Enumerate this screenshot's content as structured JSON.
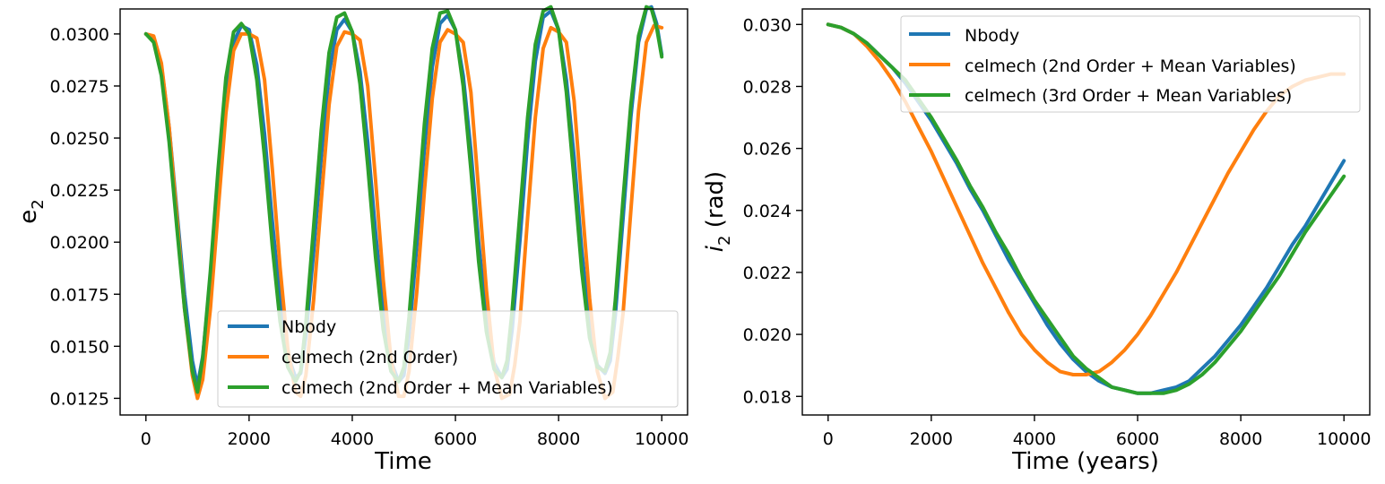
{
  "chart_data": [
    {
      "type": "line",
      "xlabel": "Time",
      "ylabel": "e",
      "ylabel_sub": "2",
      "xlim": [
        -500,
        10500
      ],
      "ylim": [
        0.0117,
        0.0312
      ],
      "xticks": [
        0,
        2000,
        4000,
        6000,
        8000,
        10000
      ],
      "xtick_labels": [
        "0",
        "2000",
        "4000",
        "6000",
        "8000",
        "10000"
      ],
      "yticks": [
        0.0125,
        0.015,
        0.0175,
        0.02,
        0.0225,
        0.025,
        0.0275,
        0.03
      ],
      "ytick_labels": [
        "0.0125",
        "0.0150",
        "0.0175",
        "0.0200",
        "0.0225",
        "0.0250",
        "0.0275",
        "0.0300"
      ],
      "legend_position": "lower-right",
      "grid": false,
      "series": [
        {
          "name": "Nbody",
          "color": "#1f77b4",
          "x": [
            0,
            150,
            300,
            450,
            600,
            750,
            900,
            1000,
            1100,
            1250,
            1400,
            1550,
            1700,
            1850,
            2000,
            2150,
            2300,
            2450,
            2600,
            2750,
            2900,
            3000,
            3100,
            3250,
            3400,
            3550,
            3700,
            3850,
            4000,
            4150,
            4300,
            4450,
            4600,
            4750,
            4900,
            5000,
            5100,
            5250,
            5400,
            5550,
            5700,
            5850,
            6000,
            6150,
            6300,
            6450,
            6600,
            6750,
            6900,
            7000,
            7100,
            7250,
            7400,
            7550,
            7700,
            7850,
            8000,
            8150,
            8300,
            8450,
            8600,
            8750,
            8900,
            9000,
            9100,
            9250,
            9400,
            9550,
            9700,
            9800,
            9900,
            10000
          ],
          "y": [
            0.03,
            0.0298,
            0.0285,
            0.0255,
            0.0215,
            0.0175,
            0.0143,
            0.0131,
            0.0145,
            0.0182,
            0.0228,
            0.0272,
            0.0296,
            0.0304,
            0.0302,
            0.0285,
            0.0252,
            0.021,
            0.0172,
            0.0146,
            0.0135,
            0.0137,
            0.0155,
            0.0195,
            0.0241,
            0.0281,
            0.0302,
            0.0307,
            0.0301,
            0.0282,
            0.0248,
            0.0205,
            0.0167,
            0.0143,
            0.0133,
            0.0136,
            0.0155,
            0.0198,
            0.0245,
            0.0284,
            0.0305,
            0.0309,
            0.0302,
            0.028,
            0.0244,
            0.02,
            0.0164,
            0.0142,
            0.0135,
            0.0139,
            0.0158,
            0.0201,
            0.0249,
            0.0287,
            0.0308,
            0.0311,
            0.0302,
            0.0278,
            0.0241,
            0.0196,
            0.016,
            0.0141,
            0.0137,
            0.0143,
            0.0165,
            0.0212,
            0.026,
            0.0296,
            0.0312,
            0.0313,
            0.0305,
            0.029
          ]
        },
        {
          "name": "celmech (2nd Order)",
          "color": "#ff7f0e",
          "x": [
            0,
            150,
            300,
            450,
            600,
            750,
            900,
            1000,
            1100,
            1250,
            1400,
            1550,
            1700,
            1850,
            2000,
            2150,
            2300,
            2450,
            2600,
            2750,
            2900,
            3000,
            3100,
            3250,
            3400,
            3550,
            3700,
            3850,
            4000,
            4150,
            4300,
            4450,
            4600,
            4750,
            4900,
            5000,
            5100,
            5250,
            5400,
            5550,
            5700,
            5850,
            6000,
            6150,
            6300,
            6450,
            6600,
            6750,
            6900,
            7050,
            7150,
            7250,
            7400,
            7550,
            7700,
            7850,
            8000,
            8150,
            8300,
            8450,
            8600,
            8750,
            8900,
            9050,
            9150,
            9250,
            9400,
            9550,
            9700,
            9850,
            10000
          ],
          "y": [
            0.03,
            0.0299,
            0.0286,
            0.0255,
            0.0212,
            0.0168,
            0.0136,
            0.0125,
            0.0134,
            0.0168,
            0.0215,
            0.0262,
            0.0292,
            0.03,
            0.03,
            0.0298,
            0.0278,
            0.0235,
            0.0188,
            0.0149,
            0.0128,
            0.0126,
            0.0136,
            0.0172,
            0.022,
            0.0266,
            0.0294,
            0.0301,
            0.03,
            0.0297,
            0.0275,
            0.023,
            0.0182,
            0.0144,
            0.0126,
            0.0126,
            0.0138,
            0.0176,
            0.0225,
            0.0269,
            0.0296,
            0.0302,
            0.03,
            0.0296,
            0.0272,
            0.0225,
            0.0177,
            0.014,
            0.0125,
            0.0127,
            0.0141,
            0.0162,
            0.0212,
            0.026,
            0.0293,
            0.0303,
            0.0301,
            0.0296,
            0.0268,
            0.022,
            0.0173,
            0.0138,
            0.0125,
            0.0128,
            0.0145,
            0.0166,
            0.0215,
            0.0263,
            0.0296,
            0.0304,
            0.0303
          ]
        },
        {
          "name": "celmech (2nd Order + Mean Variables)",
          "color": "#2ca02c",
          "x": [
            0,
            150,
            300,
            450,
            600,
            750,
            900,
            1000,
            1100,
            1250,
            1400,
            1550,
            1700,
            1850,
            2000,
            2150,
            2300,
            2450,
            2600,
            2750,
            2900,
            3000,
            3100,
            3250,
            3400,
            3550,
            3700,
            3850,
            4000,
            4150,
            4300,
            4450,
            4600,
            4750,
            4900,
            5000,
            5100,
            5250,
            5400,
            5550,
            5700,
            5850,
            6000,
            6150,
            6300,
            6450,
            6600,
            6750,
            6900,
            7000,
            7100,
            7250,
            7400,
            7550,
            7700,
            7850,
            8000,
            8150,
            8300,
            8450,
            8600,
            8750,
            8900,
            9000,
            9100,
            9250,
            9400,
            9550,
            9700,
            9800,
            9900,
            10000
          ],
          "y": [
            0.03,
            0.0296,
            0.028,
            0.0248,
            0.0207,
            0.0168,
            0.0138,
            0.0128,
            0.0144,
            0.0186,
            0.0235,
            0.0279,
            0.0301,
            0.0305,
            0.03,
            0.0278,
            0.0241,
            0.0198,
            0.0162,
            0.014,
            0.0133,
            0.0138,
            0.0161,
            0.0207,
            0.0254,
            0.0291,
            0.0308,
            0.031,
            0.0301,
            0.0276,
            0.0237,
            0.0193,
            0.0158,
            0.0138,
            0.0133,
            0.014,
            0.0164,
            0.021,
            0.0257,
            0.0293,
            0.031,
            0.0311,
            0.0302,
            0.0275,
            0.0235,
            0.0191,
            0.0157,
            0.0139,
            0.0135,
            0.0143,
            0.0167,
            0.0214,
            0.026,
            0.0295,
            0.0311,
            0.0313,
            0.0302,
            0.0272,
            0.023,
            0.0186,
            0.0154,
            0.014,
            0.0138,
            0.0147,
            0.0172,
            0.0221,
            0.0266,
            0.0299,
            0.0313,
            0.0312,
            0.0303,
            0.0289
          ]
        }
      ]
    },
    {
      "type": "line",
      "xlabel": "Time (years)",
      "ylabel_i": "i",
      "ylabel_sub": "2",
      "ylabel_rest": " (rad)",
      "xlim": [
        -500,
        10500
      ],
      "ylim": [
        0.0174,
        0.0305
      ],
      "xticks": [
        0,
        2000,
        4000,
        6000,
        8000,
        10000
      ],
      "xtick_labels": [
        "0",
        "2000",
        "4000",
        "6000",
        "8000",
        "10000"
      ],
      "yticks": [
        0.018,
        0.02,
        0.022,
        0.024,
        0.026,
        0.028,
        0.03
      ],
      "ytick_labels": [
        "0.018",
        "0.020",
        "0.022",
        "0.024",
        "0.026",
        "0.028",
        "0.030"
      ],
      "legend_position": "upper-right",
      "grid": false,
      "series": [
        {
          "name": "Nbody",
          "color": "#1f77b4",
          "x": [
            0,
            250,
            500,
            750,
            1000,
            1250,
            1500,
            1750,
            2000,
            2250,
            2500,
            2750,
            3000,
            3250,
            3500,
            3750,
            4000,
            4250,
            4500,
            4750,
            5000,
            5250,
            5500,
            5750,
            6000,
            6250,
            6500,
            6750,
            7000,
            7250,
            7500,
            7750,
            8000,
            8250,
            8500,
            8750,
            9000,
            9250,
            9500,
            9750,
            10000
          ],
          "y": [
            0.03,
            0.0299,
            0.0297,
            0.0294,
            0.029,
            0.0286,
            0.0281,
            0.0275,
            0.0269,
            0.0262,
            0.0255,
            0.0247,
            0.024,
            0.0232,
            0.0224,
            0.0217,
            0.021,
            0.0203,
            0.0197,
            0.0192,
            0.0188,
            0.0185,
            0.0183,
            0.0182,
            0.0181,
            0.0181,
            0.0182,
            0.0183,
            0.0185,
            0.0189,
            0.0193,
            0.0198,
            0.0203,
            0.0209,
            0.0215,
            0.0222,
            0.0229,
            0.0235,
            0.0242,
            0.0249,
            0.0256
          ]
        },
        {
          "name": "celmech (2nd Order + Mean Variables)",
          "color": "#ff7f0e",
          "x": [
            0,
            250,
            500,
            750,
            1000,
            1250,
            1500,
            1750,
            2000,
            2250,
            2500,
            2750,
            3000,
            3250,
            3500,
            3750,
            4000,
            4250,
            4500,
            4750,
            5000,
            5250,
            5500,
            5750,
            6000,
            6250,
            6500,
            6750,
            7000,
            7250,
            7500,
            7750,
            8000,
            8250,
            8500,
            8750,
            9000,
            9250,
            9500,
            9750,
            10000
          ],
          "y": [
            0.03,
            0.0299,
            0.0297,
            0.0293,
            0.0288,
            0.0282,
            0.0275,
            0.0267,
            0.0259,
            0.025,
            0.0241,
            0.0232,
            0.0223,
            0.0215,
            0.0207,
            0.02,
            0.0195,
            0.0191,
            0.0188,
            0.0187,
            0.0187,
            0.0188,
            0.0191,
            0.0195,
            0.02,
            0.0206,
            0.0213,
            0.022,
            0.0228,
            0.0236,
            0.0244,
            0.0252,
            0.0259,
            0.0266,
            0.0272,
            0.0277,
            0.028,
            0.0282,
            0.0283,
            0.0284,
            0.0284
          ]
        },
        {
          "name": "celmech (3rd Order + Mean Variables)",
          "color": "#2ca02c",
          "x": [
            0,
            250,
            500,
            750,
            1000,
            1250,
            1500,
            1750,
            2000,
            2250,
            2500,
            2750,
            3000,
            3250,
            3500,
            3750,
            4000,
            4250,
            4500,
            4750,
            5000,
            5250,
            5500,
            5750,
            6000,
            6250,
            6500,
            6750,
            7000,
            7250,
            7500,
            7750,
            8000,
            8250,
            8500,
            8750,
            9000,
            9250,
            9500,
            9750,
            10000
          ],
          "y": [
            0.03,
            0.0299,
            0.0297,
            0.0294,
            0.029,
            0.0286,
            0.0282,
            0.0276,
            0.027,
            0.0263,
            0.0256,
            0.0248,
            0.0241,
            0.0233,
            0.0226,
            0.0218,
            0.0211,
            0.0205,
            0.0199,
            0.0193,
            0.0189,
            0.0186,
            0.0183,
            0.0182,
            0.0181,
            0.0181,
            0.0181,
            0.0182,
            0.0184,
            0.0187,
            0.0191,
            0.0196,
            0.0201,
            0.0207,
            0.0213,
            0.0219,
            0.0226,
            0.0233,
            0.0239,
            0.0245,
            0.0251
          ]
        }
      ]
    }
  ]
}
